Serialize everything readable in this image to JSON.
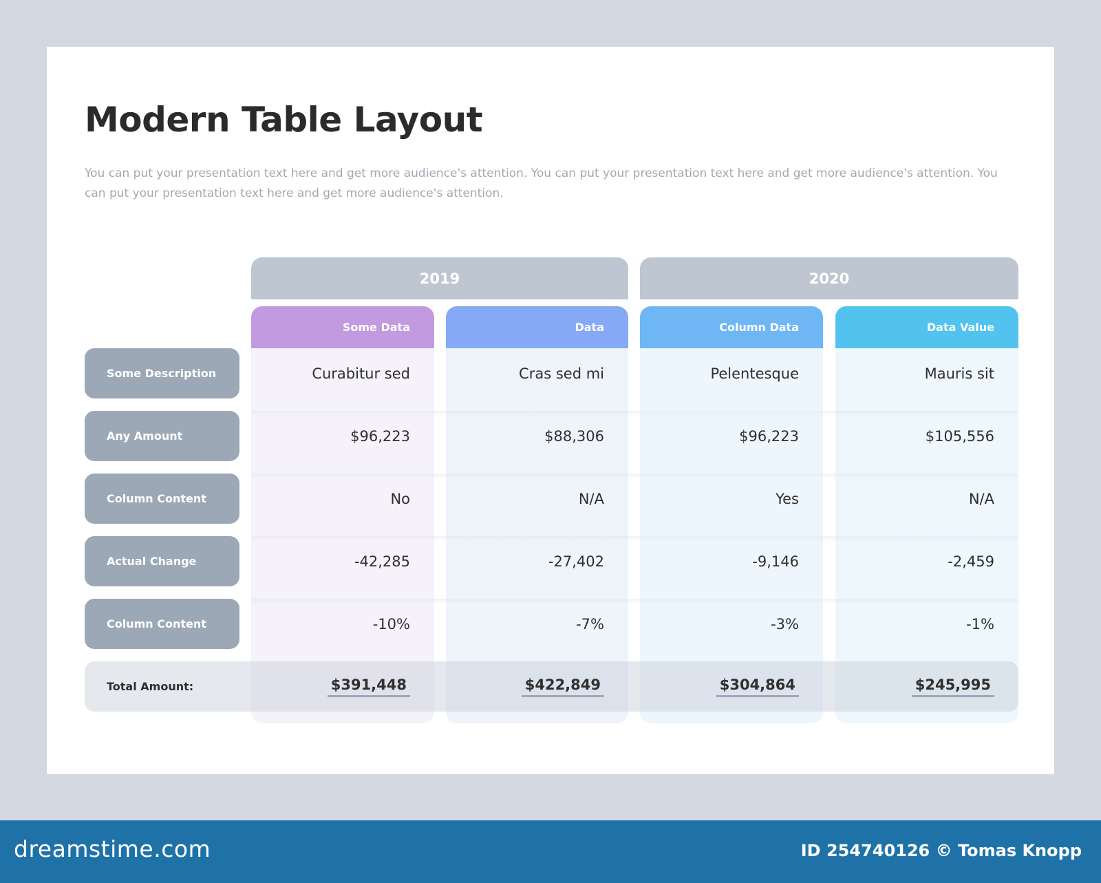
{
  "title": "Modern Table Layout",
  "subtitle": "You can put your presentation text here and get more audience's attention. You can put your presentation text here and get more audience's attention. You can put your presentation text here and get more audience's attention.",
  "years": [
    "2019",
    "2020"
  ],
  "columns": [
    {
      "label": "Some Data",
      "color": "#c29ae0",
      "bg": "#f6f2fa"
    },
    {
      "label": "Data",
      "color": "#85a9f5",
      "bg": "#eff4fb"
    },
    {
      "label": "Column Data",
      "color": "#6fb7f4",
      "bg": "#eef6fd"
    },
    {
      "label": "Data Value",
      "color": "#52c3ef",
      "bg": "#edf7fc"
    }
  ],
  "rows": [
    {
      "label": "Some Description",
      "values": [
        "Curabitur sed",
        "Cras sed mi",
        "Pelentesque",
        "Mauris sit"
      ]
    },
    {
      "label": "Any Amount",
      "values": [
        "$96,223",
        "$88,306",
        "$96,223",
        "$105,556"
      ]
    },
    {
      "label": "Column Content",
      "values": [
        "No",
        "N/A",
        "Yes",
        "N/A"
      ]
    },
    {
      "label": "Actual Change",
      "values": [
        "-42,285",
        "-27,402",
        "-9,146",
        "-2,459"
      ]
    },
    {
      "label": "Column Content",
      "values": [
        "-10%",
        "-7%",
        "-3%",
        "-1%"
      ]
    }
  ],
  "total": {
    "label": "Total Amount:",
    "values": [
      "$391,448",
      "$422,849",
      "$304,864",
      "$245,995"
    ]
  },
  "footer": {
    "site": "dreamstime.com",
    "credit": "ID 254740126 © Tomas Knopp"
  }
}
